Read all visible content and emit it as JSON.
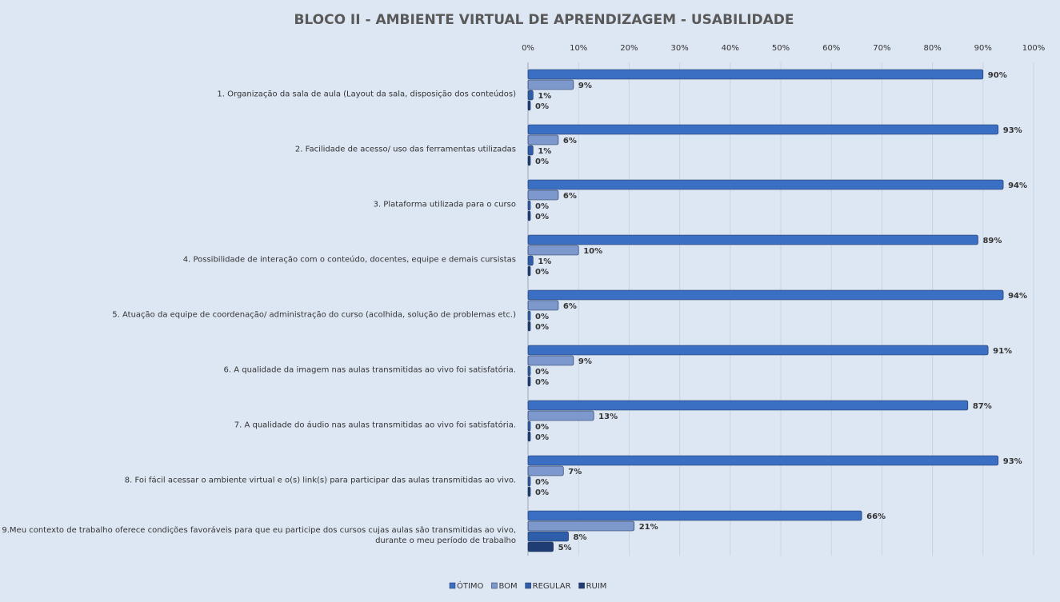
{
  "chart_data": {
    "type": "hbar",
    "title": "BLOCO II - AMBIENTE VIRTUAL DE APRENDIZAGEM - USABILIDADE",
    "categories": [
      "1. Organização da sala de aula (Layout da sala, disposição dos conteúdos)",
      "2. Facilidade de acesso/ uso das ferramentas utilizadas",
      "3. Plataforma utilizada para o curso",
      "4. Possibilidade de interação com o conteúdo, docentes, equipe e demais cursistas",
      "5. Atuação da equipe de coordenação/ administração do curso (acolhida, solução de problemas etc.)",
      "6. A qualidade da imagem nas aulas transmitidas ao vivo foi satisfatória.",
      "7. A qualidade do áudio nas aulas transmitidas ao vivo foi satisfatória.",
      "8. Foi fácil acessar o ambiente virtual e o(s) link(s) para participar das aulas transmitidas ao vivo.",
      "9.Meu contexto de trabalho oferece condições favoráveis para que eu participe dos cursos cujas aulas são transmitidas ao vivo, durante o meu período de trabalho"
    ],
    "series": [
      {
        "name": "ÓTIMO",
        "color": "#3b6fc4",
        "values": [
          90,
          93,
          94,
          89,
          94,
          91,
          87,
          93,
          66
        ],
        "value_labels": [
          "90%",
          "93%",
          "94%",
          "89%",
          "94%",
          "91%",
          "87%",
          "93%",
          "66%"
        ]
      },
      {
        "name": "BOM",
        "color": "#7d98cd",
        "values": [
          9,
          6,
          6,
          10,
          6,
          9,
          13,
          7,
          21
        ],
        "value_labels": [
          "9%",
          "6%",
          "6%",
          "10%",
          "6%",
          "9%",
          "13%",
          "7%",
          "21%"
        ]
      },
      {
        "name": "REGULAR",
        "color": "#2e5ea9",
        "values": [
          1,
          1,
          0,
          1,
          0,
          0,
          0,
          0,
          8
        ],
        "value_labels": [
          "1%",
          "1%",
          "0%",
          "1%",
          "0%",
          "0%",
          "0%",
          "0%",
          "8%"
        ]
      },
      {
        "name": "RUIM",
        "color": "#1f3d73",
        "values": [
          0,
          0,
          0,
          0,
          0,
          0,
          0,
          0,
          5
        ],
        "value_labels": [
          "0%",
          "0%",
          "0%",
          "0%",
          "0%",
          "0%",
          "0%",
          "0%",
          "5%"
        ]
      }
    ],
    "xlim": [
      0,
      100
    ],
    "xticks": [
      {
        "value": 0,
        "label": "0%"
      },
      {
        "value": 10,
        "label": "10%"
      },
      {
        "value": 20,
        "label": "20%"
      },
      {
        "value": 30,
        "label": "30%"
      },
      {
        "value": 40,
        "label": "40%"
      },
      {
        "value": 50,
        "label": "50%"
      },
      {
        "value": 60,
        "label": "60%"
      },
      {
        "value": 70,
        "label": "70%"
      },
      {
        "value": 80,
        "label": "80%"
      },
      {
        "value": 90,
        "label": "90%"
      },
      {
        "value": 100,
        "label": "100%"
      }
    ],
    "grid": true,
    "legend": "bottom"
  }
}
